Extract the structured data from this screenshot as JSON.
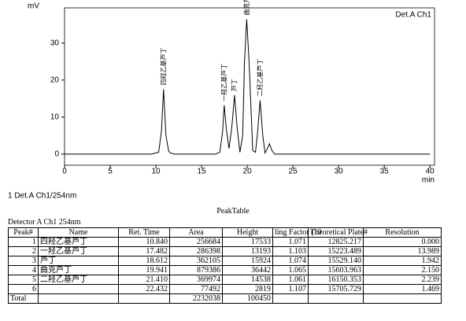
{
  "chart_data": {
    "type": "line",
    "y_label": "mV",
    "x_label": "min",
    "channel_label": "Det.A Ch1",
    "xlim": [
      0,
      40.5
    ],
    "xticks": [
      0,
      5,
      10,
      15,
      20,
      25,
      30,
      35,
      40
    ],
    "ylim": [
      -3,
      39.5
    ],
    "yticks": [
      0,
      10,
      20,
      30
    ],
    "series": [
      {
        "color": "#000000",
        "x": [
          0,
          9.5,
          10.3,
          10.6,
          10.84,
          11.1,
          11.4,
          11.6,
          12,
          16.5,
          17.0,
          17.3,
          17.48,
          17.7,
          18.0,
          18.3,
          18.61,
          18.9,
          19.2,
          19.5,
          19.7,
          19.94,
          20.2,
          20.6,
          20.9,
          21.1,
          21.41,
          21.7,
          21.95,
          22.2,
          22.43,
          22.7,
          23.0,
          25,
          40
        ],
        "values": [
          0,
          0,
          0.5,
          6,
          17.5,
          5,
          0.8,
          0.3,
          0,
          0,
          0.5,
          6,
          13.2,
          7,
          1.5,
          7,
          15.9,
          7,
          0.5,
          5,
          25,
          36.4,
          25,
          1,
          0.5,
          5,
          14.5,
          5,
          0.3,
          1.5,
          2.8,
          1,
          0,
          0,
          0
        ]
      }
    ],
    "annotations": [
      {
        "text": "四羟乙基芦丁",
        "x": 10.84
      },
      {
        "text": "一羟乙基芦丁",
        "x": 17.48
      },
      {
        "text": "芦丁",
        "x": 18.61
      },
      {
        "text": "曲克芦丁",
        "x": 19.94
      },
      {
        "text": "二羟乙基芦丁",
        "x": 21.41
      }
    ]
  },
  "section_title": "1  Det.A Ch1/254nm",
  "table": {
    "title": "PeakTable",
    "detector": "Detector A Ch1 254nm",
    "columns": [
      "Peak#",
      "Name",
      "Ret. Time",
      "Area",
      "Height",
      "ling Factor (10",
      "Theoretical Plate#",
      "Resolution"
    ],
    "rows": [
      [
        "1",
        "四羟乙基芦丁",
        "10.840",
        "256684",
        "17533",
        "1.071",
        "12825.217",
        "0.000"
      ],
      [
        "2",
        "一羟乙基芦丁",
        "17.482",
        "286398",
        "13193",
        "1.103",
        "15223.489",
        "13.989"
      ],
      [
        "3",
        "芦丁",
        "18.612",
        "362105",
        "15924",
        "1.074",
        "15529.140",
        "1.942"
      ],
      [
        "4",
        "曲克芦丁",
        "19.941",
        "879386",
        "36442",
        "1.065",
        "15603.963",
        "2.150"
      ],
      [
        "5",
        "二羟乙基芦丁",
        "21.410",
        "369974",
        "14538",
        "1.061",
        "16150.353",
        "2.239"
      ],
      [
        "6",
        "",
        "22.432",
        "77492",
        "2819",
        "1.107",
        "15705.729",
        "1.469"
      ],
      [
        "Total",
        "",
        "",
        "2232038",
        "100450",
        "",
        "",
        ""
      ]
    ]
  }
}
